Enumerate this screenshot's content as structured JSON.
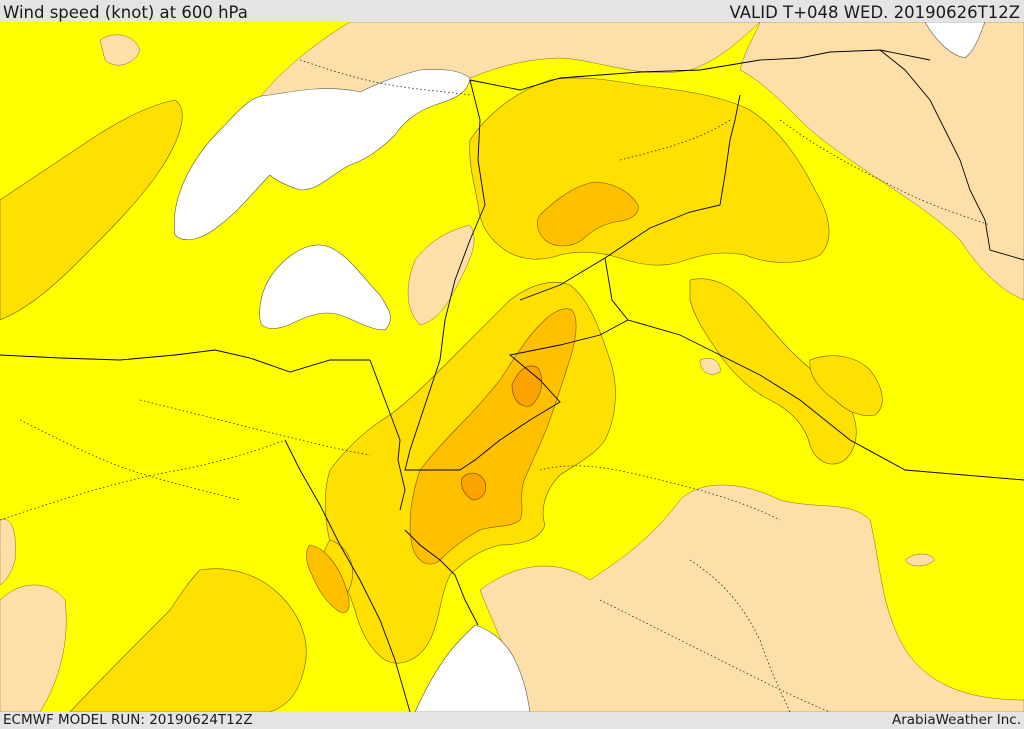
{
  "header": {
    "title": "Wind speed (knot) at 600 hPa",
    "valid": "VALID T+048 WED. 20190626T12Z"
  },
  "footer": {
    "model_run": "ECMWF MODEL RUN: 20190624T12Z",
    "credit": "ArabiaWeather Inc."
  },
  "map": {
    "colors": {
      "calm_white": "#ffffff",
      "light_tan": "#fde0a9",
      "yellow": "#ffff00",
      "gold": "#ffe000",
      "amber": "#ffc000",
      "orange": "#fda300",
      "border_line": "#000000"
    }
  }
}
